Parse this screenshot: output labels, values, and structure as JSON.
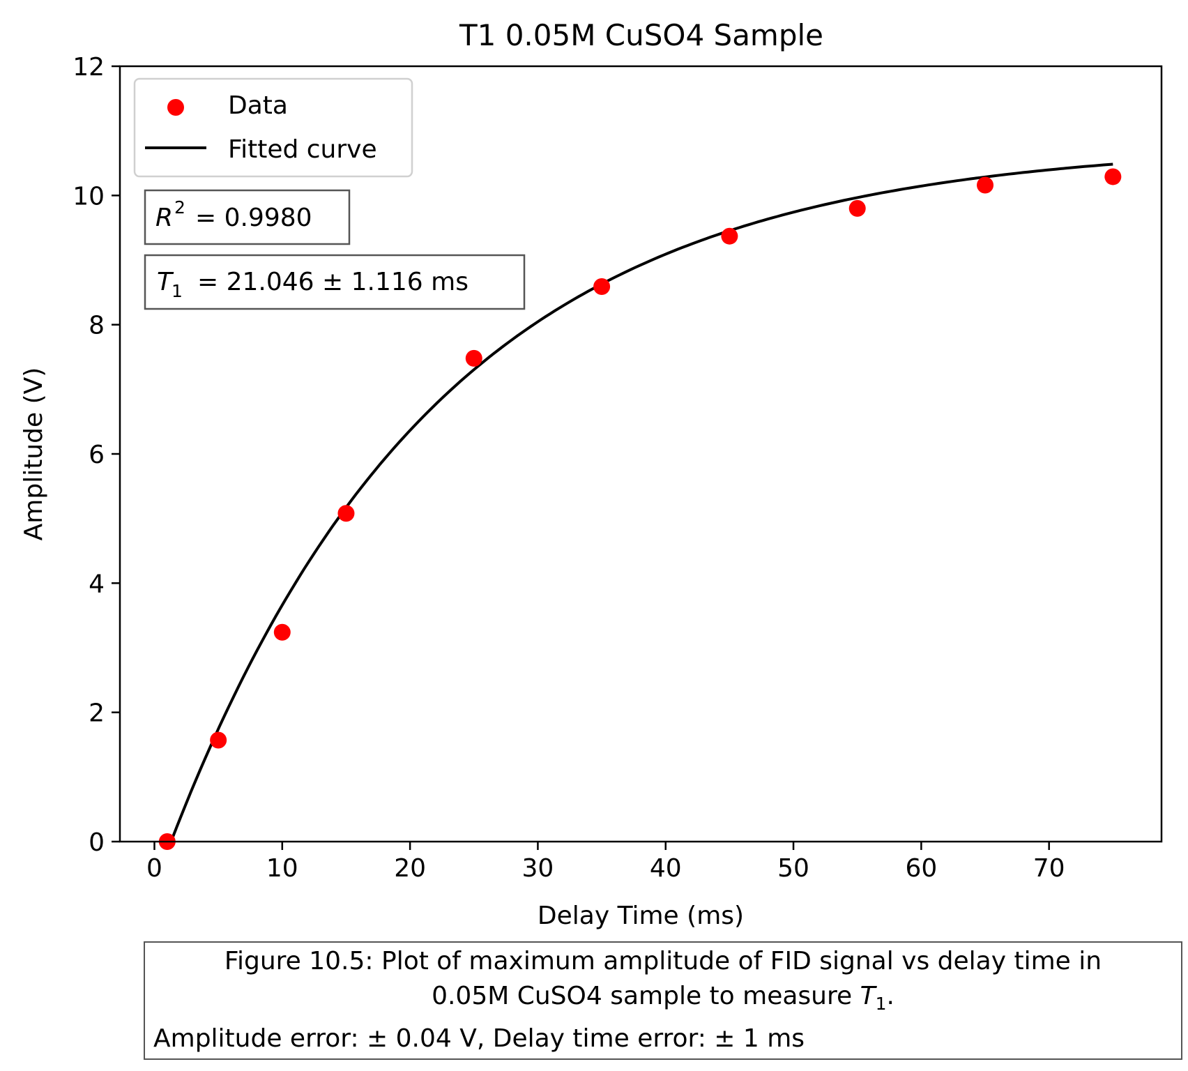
{
  "chart_data": {
    "type": "scatter",
    "title": "T1 0.05M CuSO4 Sample",
    "xlabel": "Delay Time (ms)",
    "ylabel": "Amplitude (V)",
    "xlim": [
      -2.7,
      78.8
    ],
    "ylim": [
      0,
      12
    ],
    "xticks": [
      0,
      10,
      20,
      30,
      40,
      50,
      60,
      70
    ],
    "yticks": [
      0,
      2,
      4,
      6,
      8,
      10,
      12
    ],
    "grid": false,
    "legend": {
      "placement": "top-left",
      "entries": [
        "Data",
        "Fitted curve"
      ]
    },
    "series": [
      {
        "name": "Data",
        "kind": "scatter",
        "color": "#ff0000",
        "x": [
          1,
          5,
          10,
          15,
          25,
          35,
          45,
          55,
          65,
          75
        ],
        "y": [
          0.0,
          1.57,
          3.24,
          5.08,
          7.48,
          8.59,
          9.37,
          9.8,
          10.16,
          10.29
        ]
      },
      {
        "name": "Fitted curve",
        "kind": "line",
        "color": "#000000",
        "model": {
          "M": 10.81,
          "T1": 21.046,
          "t0": 1.3,
          "x_start": 1.0,
          "x_end": 75
        }
      }
    ],
    "annotations": {
      "r2": "= 0.9980",
      "t1": "= 21.046 ± 1.116 ms"
    }
  },
  "caption": {
    "line1": "Figure 10.5: Plot of maximum amplitude of FID signal vs delay time in",
    "line2_prefix": "0.05M CuSO4 sample to measure ",
    "line2_suffix": ".",
    "line3": "Amplitude error: ± 0.04 V, Delay time error: ± 1 ms"
  }
}
